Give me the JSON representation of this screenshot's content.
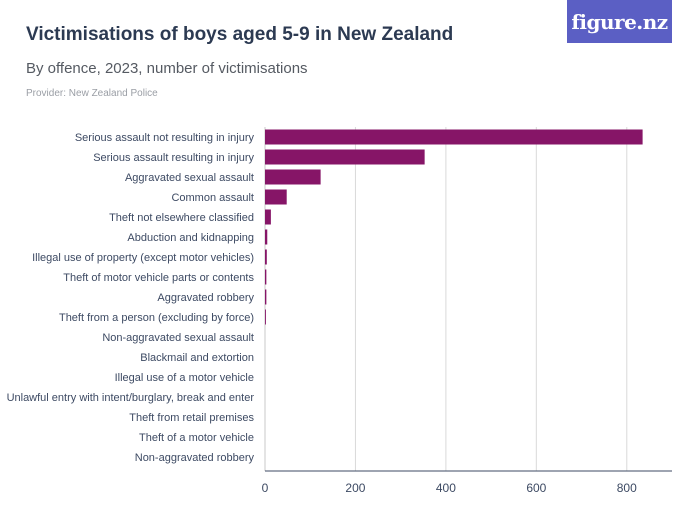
{
  "header": {
    "title": "Victimisations of boys aged 5-9 in New Zealand",
    "subtitle": "By offence, 2023, number of victimisations",
    "provider": "Provider: New Zealand Police",
    "logo": "figure.nz"
  },
  "colors": {
    "bar": "#861567",
    "grid": "#d9d9d9",
    "axis": "#3d4a63",
    "logo_bg": "#5b5fc4"
  },
  "chart_data": {
    "type": "bar",
    "orientation": "horizontal",
    "categories": [
      "Serious assault not resulting in injury",
      "Serious assault resulting in injury",
      "Aggravated sexual assault",
      "Common assault",
      "Theft not elsewhere classified",
      "Abduction and kidnapping",
      "Illegal use of property (except motor vehicles)",
      "Theft of motor vehicle parts or contents",
      "Aggravated robbery",
      "Theft from a person (excluding by force)",
      "Non-aggravated sexual assault",
      "Blackmail and extortion",
      "Illegal use of a motor vehicle",
      "Unlawful entry with intent/burglary, break and enter",
      "Theft from retail premises",
      "Theft of a motor vehicle",
      "Non-aggravated robbery"
    ],
    "values": [
      835,
      353,
      123,
      48,
      13,
      5,
      4,
      3,
      3,
      2,
      0,
      0,
      0,
      0,
      0,
      0,
      0
    ],
    "xlim": [
      0,
      900
    ],
    "xticks": [
      0,
      200,
      400,
      600,
      800
    ],
    "grid": true
  }
}
